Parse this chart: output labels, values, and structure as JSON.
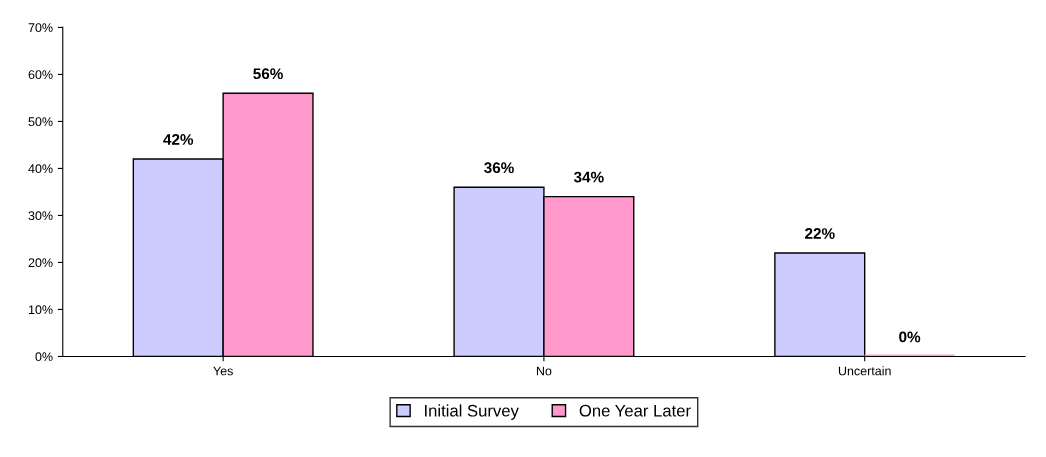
{
  "chart_data": {
    "type": "bar",
    "categories": [
      "Yes",
      "No",
      "Uncertain"
    ],
    "series": [
      {
        "name": "Initial Survey",
        "color": "#ccccff",
        "values": [
          42,
          36,
          22
        ],
        "value_labels": [
          "42%",
          "36%",
          "22%"
        ]
      },
      {
        "name": "One Year Later",
        "color": "#ff99cc",
        "values": [
          56,
          34,
          0
        ],
        "value_labels": [
          "56%",
          "34%",
          "0%"
        ]
      }
    ],
    "ylim": [
      0,
      70
    ],
    "yticks": [
      {
        "value": 0,
        "label": "0%"
      },
      {
        "value": 10,
        "label": "10%"
      },
      {
        "value": 20,
        "label": "20%"
      },
      {
        "value": 30,
        "label": "30%"
      },
      {
        "value": 40,
        "label": "40%"
      },
      {
        "value": 50,
        "label": "50%"
      },
      {
        "value": 60,
        "label": "60%"
      },
      {
        "value": 70,
        "label": "70%"
      }
    ],
    "legend": "bottom",
    "grid": false
  }
}
